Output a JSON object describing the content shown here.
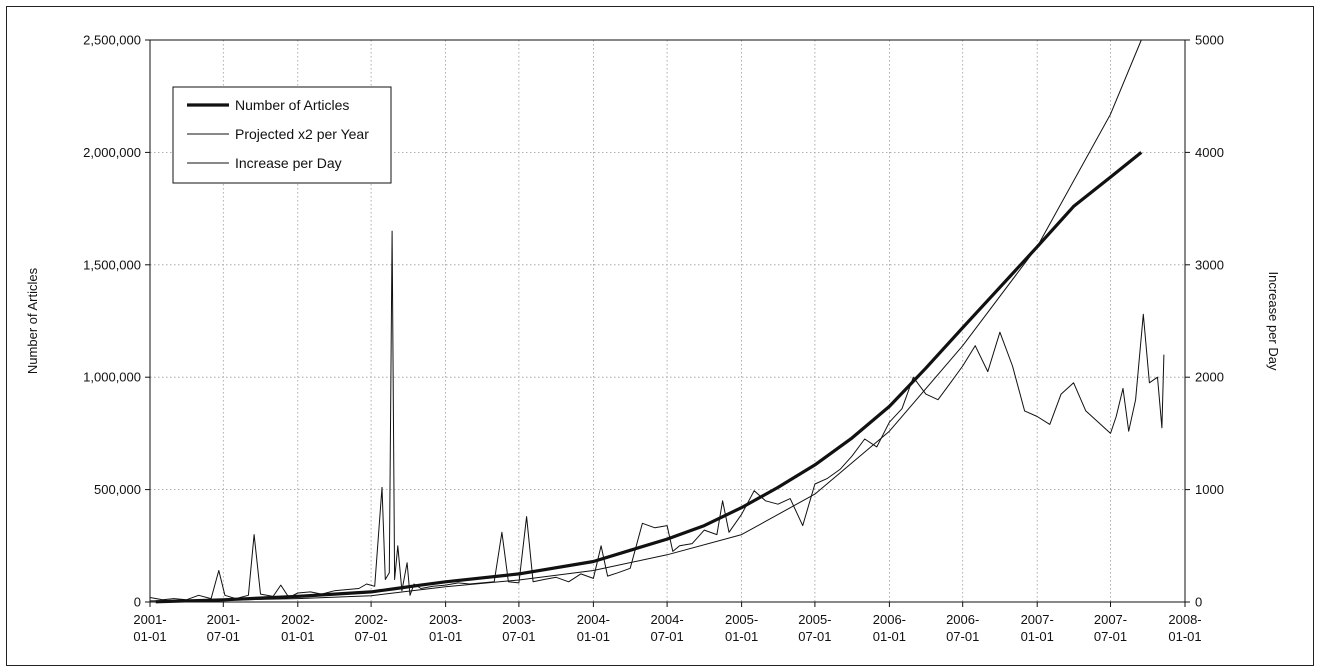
{
  "chart_data": {
    "type": "line",
    "ylabel": "Number of Articles",
    "y2label": "Increase per Day",
    "x_ticks": [
      [
        "2001-",
        "01-01"
      ],
      [
        "2001-",
        "07-01"
      ],
      [
        "2002-",
        "01-01"
      ],
      [
        "2002-",
        "07-01"
      ],
      [
        "2003-",
        "01-01"
      ],
      [
        "2003-",
        "07-01"
      ],
      [
        "2004-",
        "01-01"
      ],
      [
        "2004-",
        "07-01"
      ],
      [
        "2005-",
        "01-01"
      ],
      [
        "2005-",
        "07-01"
      ],
      [
        "2006-",
        "01-01"
      ],
      [
        "2006-",
        "07-01"
      ],
      [
        "2007-",
        "01-01"
      ],
      [
        "2007-",
        "07-01"
      ],
      [
        "2008-",
        "01-01"
      ]
    ],
    "x_tick_dates": [
      "2001-01-01",
      "2001-07-01",
      "2002-01-01",
      "2002-07-01",
      "2003-01-01",
      "2003-07-01",
      "2004-01-01",
      "2004-07-01",
      "2005-01-01",
      "2005-07-01",
      "2006-01-01",
      "2006-07-01",
      "2007-01-01",
      "2007-07-01",
      "2008-01-01"
    ],
    "y_ticks": [
      "0",
      "500,000",
      "1,000,000",
      "1,500,000",
      "2,000,000",
      "2,500,000"
    ],
    "y_tick_values": [
      0,
      500000,
      1000000,
      1500000,
      2000000,
      2500000
    ],
    "y2_ticks": [
      "0",
      "1000",
      "2000",
      "3000",
      "4000",
      "5000"
    ],
    "y2_tick_values": [
      0,
      1000,
      2000,
      3000,
      4000,
      5000
    ],
    "ylim": [
      0,
      2500000
    ],
    "y2lim": [
      0,
      5000
    ],
    "grid": true,
    "legend_position": "top-left",
    "legend": [
      "Number of Articles",
      "Projected x2 per Year",
      "Increase per Day"
    ],
    "series": [
      {
        "name": "Number of Articles",
        "axis": "left",
        "style": "thick",
        "points": [
          [
            "2001-01-15",
            1000
          ],
          [
            "2001-07-01",
            10000
          ],
          [
            "2002-01-01",
            25000
          ],
          [
            "2002-07-01",
            45000
          ],
          [
            "2002-09-01",
            60000
          ],
          [
            "2002-11-01",
            75000
          ],
          [
            "2003-01-01",
            90000
          ],
          [
            "2003-07-01",
            125000
          ],
          [
            "2004-01-01",
            180000
          ],
          [
            "2004-04-01",
            230000
          ],
          [
            "2004-07-01",
            280000
          ],
          [
            "2004-10-01",
            340000
          ],
          [
            "2005-01-01",
            420000
          ],
          [
            "2005-04-01",
            510000
          ],
          [
            "2005-07-01",
            610000
          ],
          [
            "2005-10-01",
            730000
          ],
          [
            "2006-01-01",
            870000
          ],
          [
            "2006-04-01",
            1040000
          ],
          [
            "2006-07-01",
            1220000
          ],
          [
            "2006-10-01",
            1400000
          ],
          [
            "2007-01-01",
            1580000
          ],
          [
            "2007-04-01",
            1760000
          ],
          [
            "2007-07-01",
            1890000
          ],
          [
            "2007-09-15",
            2000000
          ]
        ]
      },
      {
        "name": "Projected x2 per Year",
        "axis": "left",
        "style": "thin",
        "points": [
          [
            "2001-01-01",
            5000
          ],
          [
            "2001-07-01",
            8000
          ],
          [
            "2002-01-01",
            15000
          ],
          [
            "2002-07-01",
            28000
          ],
          [
            "2003-01-01",
            68000
          ],
          [
            "2003-07-01",
            98000
          ],
          [
            "2004-01-01",
            140000
          ],
          [
            "2004-07-01",
            210000
          ],
          [
            "2005-01-01",
            300000
          ],
          [
            "2005-07-01",
            480000
          ],
          [
            "2006-01-01",
            760000
          ],
          [
            "2006-07-01",
            1140000
          ],
          [
            "2007-01-01",
            1580000
          ],
          [
            "2007-07-01",
            2170000
          ],
          [
            "2007-09-15",
            2500000
          ]
        ]
      },
      {
        "name": "Increase per Day",
        "axis": "right",
        "style": "thin",
        "points": [
          [
            "2001-01-01",
            40
          ],
          [
            "2001-02-01",
            20
          ],
          [
            "2001-03-01",
            30
          ],
          [
            "2001-04-01",
            20
          ],
          [
            "2001-05-01",
            60
          ],
          [
            "2001-06-01",
            30
          ],
          [
            "2001-06-20",
            280
          ],
          [
            "2001-07-05",
            60
          ],
          [
            "2001-08-01",
            30
          ],
          [
            "2001-09-01",
            60
          ],
          [
            "2001-09-15",
            600
          ],
          [
            "2001-10-01",
            70
          ],
          [
            "2001-11-01",
            50
          ],
          [
            "2001-11-20",
            150
          ],
          [
            "2001-12-10",
            40
          ],
          [
            "2002-01-01",
            80
          ],
          [
            "2002-02-01",
            90
          ],
          [
            "2002-03-01",
            70
          ],
          [
            "2002-04-01",
            100
          ],
          [
            "2002-05-01",
            110
          ],
          [
            "2002-06-01",
            120
          ],
          [
            "2002-06-20",
            160
          ],
          [
            "2002-07-10",
            140
          ],
          [
            "2002-07-28",
            1020
          ],
          [
            "2002-08-05",
            200
          ],
          [
            "2002-08-15",
            260
          ],
          [
            "2002-08-22",
            3300
          ],
          [
            "2002-08-28",
            200
          ],
          [
            "2002-09-05",
            500
          ],
          [
            "2002-09-15",
            100
          ],
          [
            "2002-09-28",
            350
          ],
          [
            "2002-10-05",
            60
          ],
          [
            "2002-10-15",
            160
          ],
          [
            "2002-11-01",
            120
          ],
          [
            "2002-12-01",
            140
          ],
          [
            "2003-01-01",
            150
          ],
          [
            "2003-02-01",
            170
          ],
          [
            "2003-03-01",
            160
          ],
          [
            "2003-04-01",
            170
          ],
          [
            "2003-05-01",
            180
          ],
          [
            "2003-05-20",
            620
          ],
          [
            "2003-06-05",
            180
          ],
          [
            "2003-07-01",
            170
          ],
          [
            "2003-07-20",
            760
          ],
          [
            "2003-08-05",
            180
          ],
          [
            "2003-09-01",
            200
          ],
          [
            "2003-10-01",
            220
          ],
          [
            "2003-11-01",
            180
          ],
          [
            "2003-12-01",
            250
          ],
          [
            "2004-01-01",
            210
          ],
          [
            "2004-01-20",
            500
          ],
          [
            "2004-02-05",
            230
          ],
          [
            "2004-03-01",
            260
          ],
          [
            "2004-04-01",
            300
          ],
          [
            "2004-05-01",
            700
          ],
          [
            "2004-06-01",
            660
          ],
          [
            "2004-07-01",
            680
          ],
          [
            "2004-07-15",
            450
          ],
          [
            "2004-08-01",
            500
          ],
          [
            "2004-09-01",
            520
          ],
          [
            "2004-10-01",
            640
          ],
          [
            "2004-11-01",
            600
          ],
          [
            "2004-11-15",
            900
          ],
          [
            "2004-12-01",
            620
          ],
          [
            "2005-01-01",
            780
          ],
          [
            "2005-02-01",
            990
          ],
          [
            "2005-03-01",
            900
          ],
          [
            "2005-04-01",
            870
          ],
          [
            "2005-05-01",
            920
          ],
          [
            "2005-06-01",
            680
          ],
          [
            "2005-07-01",
            1050
          ],
          [
            "2005-08-01",
            1100
          ],
          [
            "2005-09-01",
            1180
          ],
          [
            "2005-10-01",
            1300
          ],
          [
            "2005-11-01",
            1450
          ],
          [
            "2005-12-01",
            1380
          ],
          [
            "2006-01-01",
            1600
          ],
          [
            "2006-02-01",
            1720
          ],
          [
            "2006-03-01",
            2000
          ],
          [
            "2006-04-01",
            1850
          ],
          [
            "2006-05-01",
            1800
          ],
          [
            "2006-06-01",
            1950
          ],
          [
            "2006-07-01",
            2100
          ],
          [
            "2006-08-01",
            2280
          ],
          [
            "2006-09-01",
            2050
          ],
          [
            "2006-10-01",
            2400
          ],
          [
            "2006-11-01",
            2100
          ],
          [
            "2006-12-01",
            1700
          ],
          [
            "2007-01-01",
            1650
          ],
          [
            "2007-02-01",
            1580
          ],
          [
            "2007-03-01",
            1850
          ],
          [
            "2007-04-01",
            1950
          ],
          [
            "2007-05-01",
            1700
          ],
          [
            "2007-06-01",
            1600
          ],
          [
            "2007-07-01",
            1500
          ],
          [
            "2007-07-15",
            1650
          ],
          [
            "2007-08-01",
            1900
          ],
          [
            "2007-08-15",
            1520
          ],
          [
            "2007-09-01",
            1800
          ],
          [
            "2007-09-20",
            2560
          ],
          [
            "2007-10-05",
            1950
          ],
          [
            "2007-10-25",
            2000
          ],
          [
            "2007-11-05",
            1550
          ],
          [
            "2007-11-10",
            2200
          ]
        ]
      }
    ]
  }
}
